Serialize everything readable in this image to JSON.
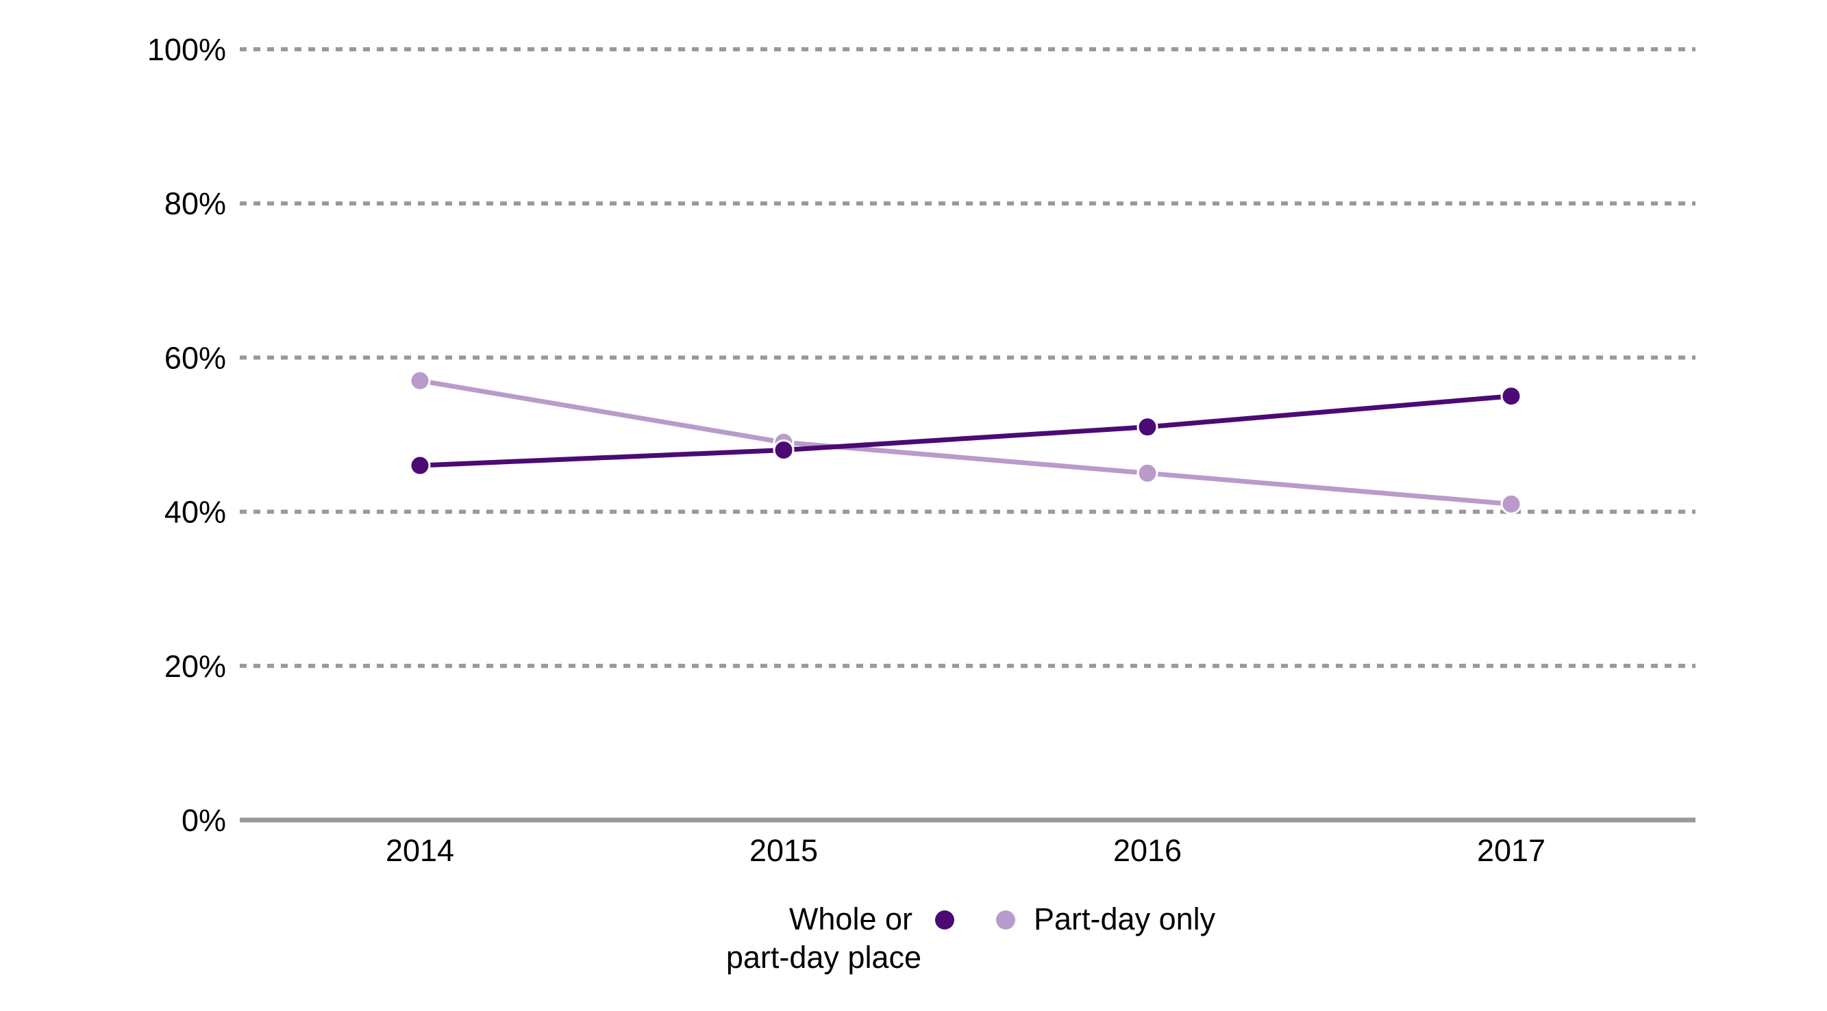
{
  "chart_data": {
    "type": "line",
    "categories": [
      "2014",
      "2015",
      "2016",
      "2017"
    ],
    "series": [
      {
        "name": "Whole or part-day place",
        "name_lines": [
          "Whole or",
          "part-day place"
        ],
        "values": [
          46,
          48,
          51,
          55
        ],
        "color": "#4b0a74"
      },
      {
        "name": "Part-day only",
        "name_lines": [
          "Part-day only"
        ],
        "values": [
          57,
          49,
          45,
          41
        ],
        "color": "#b89bcb"
      }
    ],
    "y_ticks": [
      0,
      20,
      40,
      60,
      80,
      100
    ],
    "y_tick_labels": [
      "0%",
      "20%",
      "40%",
      "60%",
      "80%",
      "100%"
    ],
    "ylim": [
      0,
      100
    ],
    "grid": true,
    "gridline_color": "#999999",
    "axis_color": "#999999",
    "legend_position": "bottom-center",
    "title": "",
    "xlabel": "",
    "ylabel": ""
  }
}
